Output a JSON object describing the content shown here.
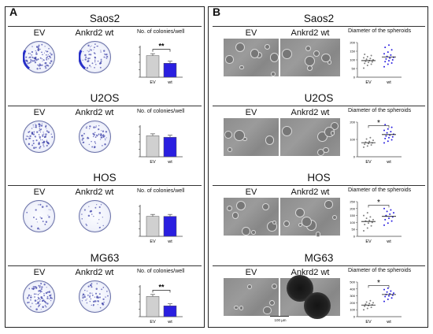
{
  "panels": {
    "A": {
      "letter": "A",
      "sections": [
        {
          "cell_line": "Saos2",
          "ev": "EV",
          "wt": "Ankrd2 wt",
          "chart_title": "No. of colonies/well",
          "significance": "**"
        },
        {
          "cell_line": "U2OS",
          "ev": "EV",
          "wt": "Ankrd2 wt",
          "chart_title": "No. of colonies/well",
          "significance": ""
        },
        {
          "cell_line": "HOS",
          "ev": "EV",
          "wt": "Ankrd2 wt",
          "chart_title": "No. of colonies/well",
          "significance": ""
        },
        {
          "cell_line": "MG63",
          "ev": "EV",
          "wt": "Ankrd2 wt",
          "chart_title": "No. of colonies/well",
          "significance": "**"
        }
      ]
    },
    "B": {
      "letter": "B",
      "scale_bar": "100 µm",
      "sections": [
        {
          "cell_line": "Saos2",
          "ev": "EV",
          "wt": "Ankrd2 wt",
          "chart_title": "Diameter of the spheroids",
          "significance": ""
        },
        {
          "cell_line": "U2OS",
          "ev": "EV",
          "wt": "Ankrd2 wt",
          "chart_title": "Diameter of the spheroids",
          "significance": "*"
        },
        {
          "cell_line": "HOS",
          "ev": "EV",
          "wt": "Ankrd2 wt",
          "chart_title": "Diameter of the spheroids",
          "significance": "*"
        },
        {
          "cell_line": "MG63",
          "ev": "EV",
          "wt": "Ankrd2 wt",
          "chart_title": "Diameter of the spheroids",
          "significance": "*"
        }
      ]
    }
  },
  "colors": {
    "ev_bar": "#d0d0d0",
    "wt_bar": "#2a1fe0",
    "ev_dot": "#808080",
    "wt_dot": "#2a1fe0"
  },
  "chart_data": [
    {
      "type": "bar",
      "title": "No. of colonies/well",
      "categories": [
        "EV",
        "wt"
      ],
      "values": [
        108,
        70
      ],
      "ylim": [
        0,
        150
      ],
      "significance": "**"
    },
    {
      "type": "bar",
      "title": "No. of colonies/well",
      "categories": [
        "EV",
        "wt"
      ],
      "values": [
        105,
        98
      ],
      "ylim": [
        0,
        150
      ],
      "significance": ""
    },
    {
      "type": "bar",
      "title": "No. of colonies/well",
      "categories": [
        "EV",
        "wt"
      ],
      "values": [
        40,
        40
      ],
      "ylim": [
        0,
        60
      ],
      "significance": ""
    },
    {
      "type": "bar",
      "title": "No. of colonies/well",
      "categories": [
        "EV",
        "wt"
      ],
      "values": [
        270,
        145
      ],
      "ylim": [
        0,
        400
      ],
      "significance": "**"
    },
    {
      "type": "scatter",
      "title": "Diameter of the spheroids",
      "categories": [
        "EV",
        "wt"
      ],
      "series": [
        {
          "name": "EV",
          "values": [
            52,
            68,
            75,
            80,
            85,
            88,
            92,
            96,
            100,
            104,
            108,
            112,
            118,
            125,
            132
          ]
        },
        {
          "name": "wt",
          "values": [
            60,
            75,
            82,
            90,
            95,
            100,
            105,
            110,
            115,
            120,
            128,
            135,
            145,
            158,
            172,
            185
          ]
        }
      ],
      "ylim": [
        0,
        200
      ],
      "yticks": [
        0,
        50,
        100,
        150,
        200
      ],
      "significance": ""
    },
    {
      "type": "scatter",
      "title": "Diameter of the spheroids",
      "categories": [
        "EV",
        "wt"
      ],
      "series": [
        {
          "name": "EV",
          "values": [
            55,
            62,
            68,
            72,
            76,
            80,
            84,
            88,
            95,
            102,
            110
          ]
        },
        {
          "name": "wt",
          "values": [
            80,
            90,
            98,
            105,
            110,
            115,
            120,
            125,
            130,
            138,
            145,
            152,
            160,
            170,
            185
          ]
        }
      ],
      "ylim": [
        0,
        200
      ],
      "yticks": [
        0,
        100,
        200
      ],
      "significance": "*"
    },
    {
      "type": "scatter",
      "title": "Diameter of the spheroids",
      "categories": [
        "EV",
        "wt"
      ],
      "series": [
        {
          "name": "EV",
          "values": [
            40,
            60,
            75,
            85,
            95,
            100,
            110,
            115,
            120,
            130,
            140,
            150,
            170
          ]
        },
        {
          "name": "wt",
          "values": [
            80,
            95,
            110,
            120,
            130,
            140,
            150,
            160,
            170,
            180,
            190,
            200
          ]
        }
      ],
      "ylim": [
        0,
        250
      ],
      "yticks": [
        0,
        50,
        100,
        150,
        200,
        250
      ],
      "significance": "*"
    },
    {
      "type": "scatter",
      "title": "Diameter of the spheroids",
      "categories": [
        "EV",
        "wt"
      ],
      "series": [
        {
          "name": "EV",
          "values": [
            100,
            120,
            135,
            150,
            160,
            170,
            180,
            190,
            200,
            210,
            230
          ]
        },
        {
          "name": "wt",
          "values": [
            220,
            250,
            270,
            290,
            300,
            310,
            320,
            330,
            340,
            355,
            370,
            390,
            410
          ]
        }
      ],
      "ylim": [
        0,
        500
      ],
      "yticks": [
        0,
        100,
        200,
        300,
        400,
        500
      ],
      "significance": "*"
    }
  ]
}
